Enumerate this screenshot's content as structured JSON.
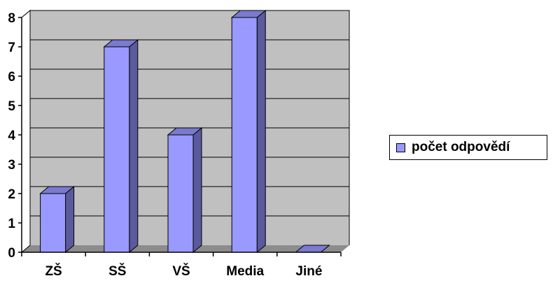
{
  "chart_data": {
    "type": "bar",
    "categories": [
      "ZŠ",
      "SŠ",
      "VŠ",
      "Media",
      "Jiné"
    ],
    "series": [
      {
        "name": "počet odpovědí",
        "values": [
          2,
          7,
          4,
          8,
          0
        ]
      }
    ],
    "ylim": [
      0,
      8
    ],
    "yticks": [
      "0",
      "1",
      "2",
      "3",
      "4",
      "5",
      "6",
      "7",
      "8"
    ],
    "grid": true,
    "legend_position": "right",
    "colors": {
      "bar_front": "#9999ff",
      "bar_side": "#5a5a9c",
      "bar_top": "#7a7ad0",
      "wall": "#c0c0c0",
      "floor": "#8c8c8c"
    }
  }
}
